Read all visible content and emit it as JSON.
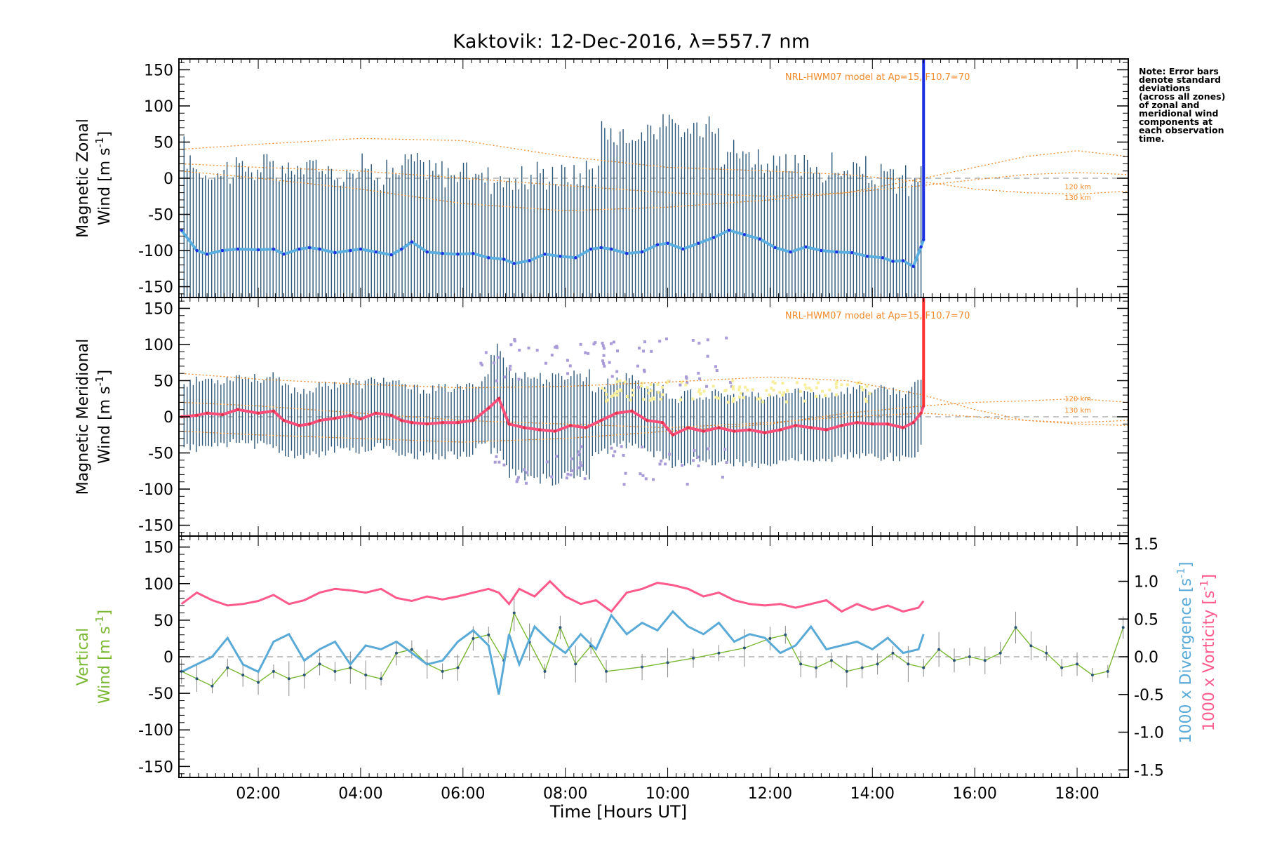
{
  "title": "Kaktovik: 12-Dec-2016, λ=557.7 nm",
  "note_lines": [
    "Note: Error bars",
    "denote standard",
    "deviations",
    "(across all zones)",
    "of zonal and",
    "meridional wind",
    "components at",
    "each observation",
    "time."
  ],
  "colors": {
    "errorbar": "#2b5577",
    "zonal_mean": "#5aaee0",
    "zonal_mean_dark": "#1d2fe0",
    "meridional_mean": "#ff4d7a",
    "model": "#f08a2a",
    "vertical": "#7ab833",
    "divergence": "#5aaad8",
    "vorticity": "#ff5a8c",
    "scatter_purple": "#a99ad8",
    "scatter_yellow": "#f6ee9a",
    "zero_line": "#a0a0a0"
  },
  "chart_data": [
    {
      "type": "line",
      "panel": "zonal",
      "ylabel_line1": "Magnetic Zonal",
      "ylabel_line2": "Wind [m s",
      "ylim": [
        -165,
        165
      ],
      "yticks": [
        150,
        100,
        50,
        0,
        -50,
        -100,
        -150
      ],
      "model_label": "NRL-HWM07 model at Ap=15, F10.7=70",
      "model_alt_labels": [
        "120 km",
        "130 km"
      ],
      "series": [
        {
          "name": "",
          "x": [
            0.5,
            0.8,
            1.0,
            1.3,
            1.6,
            2.0,
            2.3,
            2.5,
            2.8,
            3.0,
            3.2,
            3.5,
            3.8,
            4.0,
            4.3,
            4.6,
            4.8,
            5.0,
            5.3,
            5.6,
            5.9,
            6.2,
            6.5,
            6.8,
            7.0,
            7.3,
            7.6,
            7.9,
            8.2,
            8.5,
            8.7,
            8.9,
            9.2,
            9.5,
            9.8,
            10.0,
            10.3,
            10.6,
            10.9,
            11.2,
            11.5,
            11.8,
            12.1,
            12.4,
            12.7,
            13.0,
            13.3,
            13.6,
            13.9,
            14.2,
            14.4,
            14.6,
            14.8,
            14.95,
            15.0
          ],
          "y": [
            -72,
            -100,
            -105,
            -100,
            -98,
            -99,
            -98,
            -105,
            -98,
            -96,
            -98,
            -103,
            -100,
            -98,
            -102,
            -106,
            -98,
            -88,
            -102,
            -104,
            -105,
            -104,
            -110,
            -112,
            -118,
            -114,
            -105,
            -108,
            -110,
            -98,
            -96,
            -98,
            -104,
            -102,
            -92,
            -90,
            -98,
            -90,
            -82,
            -72,
            -78,
            -84,
            -96,
            -102,
            -95,
            -100,
            -102,
            -103,
            -108,
            -110,
            -115,
            -114,
            -122,
            -95,
            -85
          ]
        }
      ],
      "model_curves": [
        {
          "name": "zonal model a",
          "x": [
            0.5,
            2,
            4,
            6,
            8,
            10,
            12,
            13.5,
            15,
            16,
            17,
            18,
            19
          ],
          "y": [
            40,
            47,
            55,
            52,
            30,
            15,
            10,
            5,
            -5,
            -15,
            -20,
            -22,
            -18
          ]
        },
        {
          "name": "zonal model b",
          "x": [
            0.5,
            2,
            4,
            6,
            8,
            10,
            12,
            13.5,
            15,
            16,
            17,
            18,
            19
          ],
          "y": [
            20,
            15,
            10,
            0,
            -10,
            -20,
            -25,
            -20,
            0,
            15,
            30,
            38,
            30
          ]
        },
        {
          "name": "zonal model c",
          "x": [
            0.5,
            2,
            4,
            6,
            8,
            10,
            12,
            13.5,
            15,
            16,
            17,
            18,
            19
          ],
          "y": [
            10,
            0,
            -15,
            -35,
            -45,
            -40,
            -30,
            -20,
            -10,
            -2,
            5,
            8,
            5
          ]
        }
      ]
    },
    {
      "type": "line",
      "panel": "meridional",
      "ylabel_line1": "Magnetic Meridional",
      "ylabel_line2": "Wind [m s",
      "ylim": [
        -165,
        165
      ],
      "yticks": [
        150,
        100,
        50,
        0,
        -50,
        -100,
        -150
      ],
      "model_label": "NRL-HWM07 model at Ap=15, F10.7=70",
      "model_alt_labels": [
        "120 km",
        "130 km"
      ],
      "series": [
        {
          "name": "",
          "x": [
            0.5,
            0.8,
            1.0,
            1.3,
            1.6,
            2.0,
            2.3,
            2.5,
            2.8,
            3.0,
            3.2,
            3.5,
            3.8,
            4.0,
            4.3,
            4.6,
            4.8,
            5.0,
            5.3,
            5.6,
            5.9,
            6.2,
            6.5,
            6.7,
            6.9,
            7.2,
            7.5,
            7.8,
            8.1,
            8.4,
            8.7,
            9.0,
            9.3,
            9.6,
            9.9,
            10.1,
            10.4,
            10.7,
            11.0,
            11.3,
            11.6,
            11.9,
            12.2,
            12.5,
            12.8,
            13.1,
            13.4,
            13.7,
            14.0,
            14.3,
            14.6,
            14.8,
            14.95,
            15.0
          ],
          "y": [
            0,
            2,
            5,
            3,
            10,
            5,
            8,
            -5,
            -12,
            -10,
            -5,
            -2,
            2,
            -3,
            5,
            2,
            -5,
            -8,
            -10,
            -8,
            -8,
            -5,
            12,
            25,
            -10,
            -15,
            -18,
            -20,
            -12,
            -15,
            -5,
            5,
            8,
            -5,
            -8,
            -25,
            -15,
            -20,
            -15,
            -20,
            -18,
            -22,
            -18,
            -12,
            -15,
            -18,
            -12,
            -8,
            -10,
            -10,
            -15,
            -8,
            5,
            15
          ]
        }
      ],
      "model_curves": [
        {
          "name": "meridional model a",
          "x": [
            0.5,
            2,
            4,
            6,
            8,
            10,
            12,
            13.5,
            15,
            16,
            17,
            18,
            19
          ],
          "y": [
            60,
            52,
            45,
            40,
            42,
            48,
            55,
            50,
            30,
            10,
            -5,
            -8,
            -5
          ]
        },
        {
          "name": "meridional model b",
          "x": [
            0.5,
            2,
            4,
            6,
            8,
            10,
            12,
            13.5,
            15,
            16,
            17,
            18,
            19
          ],
          "y": [
            -20,
            -25,
            -30,
            -35,
            -30,
            -20,
            -10,
            5,
            15,
            20,
            22,
            25,
            20
          ]
        },
        {
          "name": "meridional model c",
          "x": [
            0.5,
            2,
            4,
            6,
            8,
            10,
            12,
            13.5,
            15,
            16,
            17,
            18,
            19
          ],
          "y": [
            20,
            15,
            5,
            -5,
            -10,
            -15,
            -8,
            0,
            5,
            0,
            -5,
            -10,
            -12
          ]
        }
      ]
    },
    {
      "type": "line",
      "panel": "vertical",
      "ylabel_line1": "Vertical",
      "ylabel_line2": "Wind [m s",
      "ylim": [
        -165,
        165
      ],
      "yticks": [
        150,
        100,
        50,
        0,
        -50,
        -100,
        -150
      ],
      "right_axis": {
        "ylim": [
          -1.6,
          1.6
        ],
        "ticks": [
          "1.5",
          "1.0",
          "0.5",
          "0.0",
          "-0.5",
          "-1.0",
          "-1.5"
        ],
        "values": [
          1.5,
          1.0,
          0.5,
          0.0,
          -0.5,
          -1.0,
          -1.5
        ]
      },
      "right_label_div": "1000 x Divergence [s",
      "right_label_vort": "1000 x Vorticity [s",
      "series": [
        {
          "name": "",
          "x": [
            0.5,
            0.8,
            1.1,
            1.4,
            1.7,
            2.0,
            2.3,
            2.6,
            2.9,
            3.2,
            3.5,
            3.8,
            4.1,
            4.4,
            4.7,
            5.0,
            5.3,
            5.6,
            5.9,
            6.2,
            6.5,
            6.8,
            7.0,
            7.3,
            7.6,
            7.9,
            8.2,
            8.5,
            8.8,
            9.5,
            10.0,
            10.5,
            11.0,
            11.5,
            12.0,
            12.3,
            12.6,
            12.9,
            13.2,
            13.5,
            13.8,
            14.1,
            14.4,
            14.7,
            15.0,
            15.3,
            15.6,
            15.9,
            16.2,
            16.5,
            16.8,
            17.1,
            17.4,
            17.7,
            18.0,
            18.3,
            18.6,
            18.9
          ],
          "y": [
            -20,
            -30,
            -40,
            -15,
            -25,
            -35,
            -20,
            -30,
            -25,
            -10,
            -20,
            -15,
            -25,
            -30,
            5,
            10,
            -10,
            -20,
            -15,
            25,
            30,
            -5,
            60,
            20,
            -20,
            40,
            -10,
            15,
            -20,
            -14,
            -8,
            -2,
            5,
            12,
            25,
            30,
            -10,
            -15,
            -5,
            -20,
            -15,
            -10,
            5,
            -10,
            -15,
            10,
            -5,
            0,
            -5,
            5,
            40,
            15,
            5,
            -15,
            -10,
            -25,
            -20,
            40
          ]
        },
        {
          "name": "",
          "x": [
            0.5,
            0.8,
            1.1,
            1.4,
            1.7,
            2.0,
            2.3,
            2.6,
            2.9,
            3.2,
            3.5,
            3.8,
            4.1,
            4.4,
            4.7,
            5.0,
            5.3,
            5.6,
            5.9,
            6.2,
            6.5,
            6.7,
            6.9,
            7.1,
            7.4,
            7.7,
            8.0,
            8.3,
            8.6,
            8.9,
            9.2,
            9.5,
            9.8,
            10.1,
            10.4,
            10.7,
            11.0,
            11.3,
            11.6,
            11.9,
            12.2,
            12.5,
            12.8,
            13.1,
            13.4,
            13.7,
            14.0,
            14.3,
            14.6,
            14.9,
            15.0
          ],
          "y": [
            -0.2,
            -0.1,
            0.0,
            0.25,
            -0.1,
            -0.2,
            0.2,
            0.3,
            -0.05,
            0.1,
            0.2,
            -0.1,
            0.15,
            0.1,
            0.2,
            0.05,
            -0.1,
            -0.05,
            0.2,
            0.35,
            0.15,
            -0.5,
            0.3,
            -0.1,
            0.4,
            0.2,
            0.05,
            0.3,
            0.1,
            0.55,
            0.3,
            0.45,
            0.35,
            0.6,
            0.4,
            0.3,
            0.45,
            0.2,
            0.3,
            0.25,
            0.05,
            0.15,
            0.4,
            0.1,
            0.15,
            0.2,
            0.1,
            0.25,
            0.05,
            0.1,
            0.3
          ]
        },
        {
          "name": "",
          "x": [
            0.5,
            0.8,
            1.1,
            1.4,
            1.7,
            2.0,
            2.3,
            2.6,
            2.9,
            3.2,
            3.5,
            3.8,
            4.1,
            4.4,
            4.7,
            5.0,
            5.3,
            5.6,
            5.9,
            6.2,
            6.5,
            6.7,
            6.9,
            7.1,
            7.4,
            7.7,
            8.0,
            8.3,
            8.6,
            8.9,
            9.2,
            9.5,
            9.8,
            10.1,
            10.4,
            10.7,
            11.0,
            11.3,
            11.6,
            11.9,
            12.2,
            12.5,
            12.8,
            13.1,
            13.4,
            13.7,
            14.0,
            14.3,
            14.6,
            14.9,
            15.0
          ],
          "y": [
            0.7,
            0.85,
            0.75,
            0.68,
            0.7,
            0.74,
            0.82,
            0.7,
            0.75,
            0.85,
            0.9,
            0.88,
            0.85,
            0.9,
            0.78,
            0.74,
            0.8,
            0.76,
            0.8,
            0.85,
            0.9,
            0.85,
            0.7,
            0.9,
            0.8,
            1.0,
            0.8,
            0.7,
            0.75,
            0.6,
            0.85,
            0.9,
            0.98,
            0.95,
            0.9,
            0.8,
            0.85,
            0.75,
            0.7,
            0.68,
            0.7,
            0.65,
            0.7,
            0.75,
            0.6,
            0.7,
            0.62,
            0.68,
            0.6,
            0.65,
            0.74
          ]
        }
      ]
    }
  ],
  "xaxis": {
    "label": "Time [Hours UT]",
    "xlim": [
      0.45,
      19.0
    ],
    "ticks": [
      "02:00",
      "04:00",
      "06:00",
      "08:00",
      "10:00",
      "12:00",
      "14:00",
      "16:00",
      "18:00"
    ],
    "tick_values": [
      2,
      4,
      6,
      8,
      10,
      12,
      14,
      16,
      18
    ]
  }
}
